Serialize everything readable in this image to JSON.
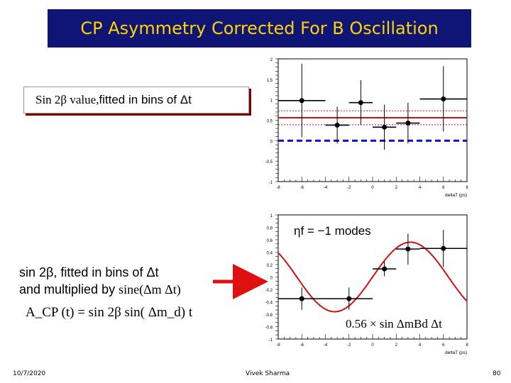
{
  "slide": {
    "title": "CP Asymmetry Corrected For B Oscillation",
    "callout_prefix": "Sin 2β  value, ",
    "callout_suffix": "fitted in bins of Δt",
    "desc_line1": "sin 2β,  fitted in bins of Δt",
    "desc_line2_a": "and multiplied by ",
    "desc_line2_b": "sine(Δm Δt)",
    "formula": "A_CP (t) = sin 2β  sin(  Δm_d) t",
    "footer_date": "10/7/2020",
    "footer_author": "Vivek Sharma",
    "footer_page": "80"
  },
  "colors": {
    "title_bg": "#0f1575",
    "title_text": "#ffd400",
    "red_line": "#cc1111",
    "blue_dash": "#1010cc",
    "arrow": "#e01010"
  },
  "chart_data": [
    {
      "type": "scatter",
      "xlabel": "deltaT (ps)",
      "xlim": [
        -8,
        8
      ],
      "ylim": [
        -1,
        2
      ],
      "x_ticks": [
        "-8",
        "-6",
        "-4",
        "-2",
        "0",
        "2",
        "4",
        "6",
        "8"
      ],
      "y_ticks": [
        "2",
        "1.5",
        "1",
        "0.5",
        "0",
        "-0.5",
        "-1"
      ],
      "points": [
        {
          "x": -6,
          "y": 0.98,
          "xerr": 2,
          "yerr": 0.9
        },
        {
          "x": -3,
          "y": 0.38,
          "xerr": 1,
          "yerr": 0.45
        },
        {
          "x": -1,
          "y": 0.93,
          "xerr": 1,
          "yerr": 0.55
        },
        {
          "x": 1,
          "y": 0.33,
          "xerr": 1,
          "yerr": 0.55
        },
        {
          "x": 3,
          "y": 0.43,
          "xerr": 1,
          "yerr": 0.5
        },
        {
          "x": 6,
          "y": 1.02,
          "xerr": 2,
          "yerr": 0.8
        }
      ],
      "fit_line": 0.56,
      "fit_band": [
        0.39,
        0.73
      ],
      "zero_line": 0
    },
    {
      "type": "scatter",
      "xlabel": "deltaT (ps)",
      "xlim": [
        -8,
        8
      ],
      "ylim": [
        -1,
        1
      ],
      "x_ticks": [
        "-8",
        "-6",
        "-4",
        "-2",
        "0",
        "2",
        "4",
        "6",
        "8"
      ],
      "y_ticks": [
        "1",
        "0.8",
        "0.6",
        "0.4",
        "0.2",
        "0",
        "-0.2",
        "-0.4",
        "-0.6",
        "-0.8",
        "-1"
      ],
      "label_mode": "ηf = −1  modes",
      "label_fit": "0.56 × sin ΔmBd Δt",
      "points": [
        {
          "x": -6,
          "y": -0.35,
          "xerr": 2,
          "yerr": 0.18
        },
        {
          "x": -2,
          "y": -0.35,
          "xerr": 2,
          "yerr": 0.18
        },
        {
          "x": 1,
          "y": 0.13,
          "xerr": 1,
          "yerr": 0.12
        },
        {
          "x": 3,
          "y": 0.45,
          "xerr": 1,
          "yerr": 0.25
        },
        {
          "x": 6,
          "y": 0.46,
          "xerr": 2,
          "yerr": 0.3
        }
      ],
      "curve": {
        "amplitude": 0.56,
        "omega": 0.489
      }
    }
  ]
}
